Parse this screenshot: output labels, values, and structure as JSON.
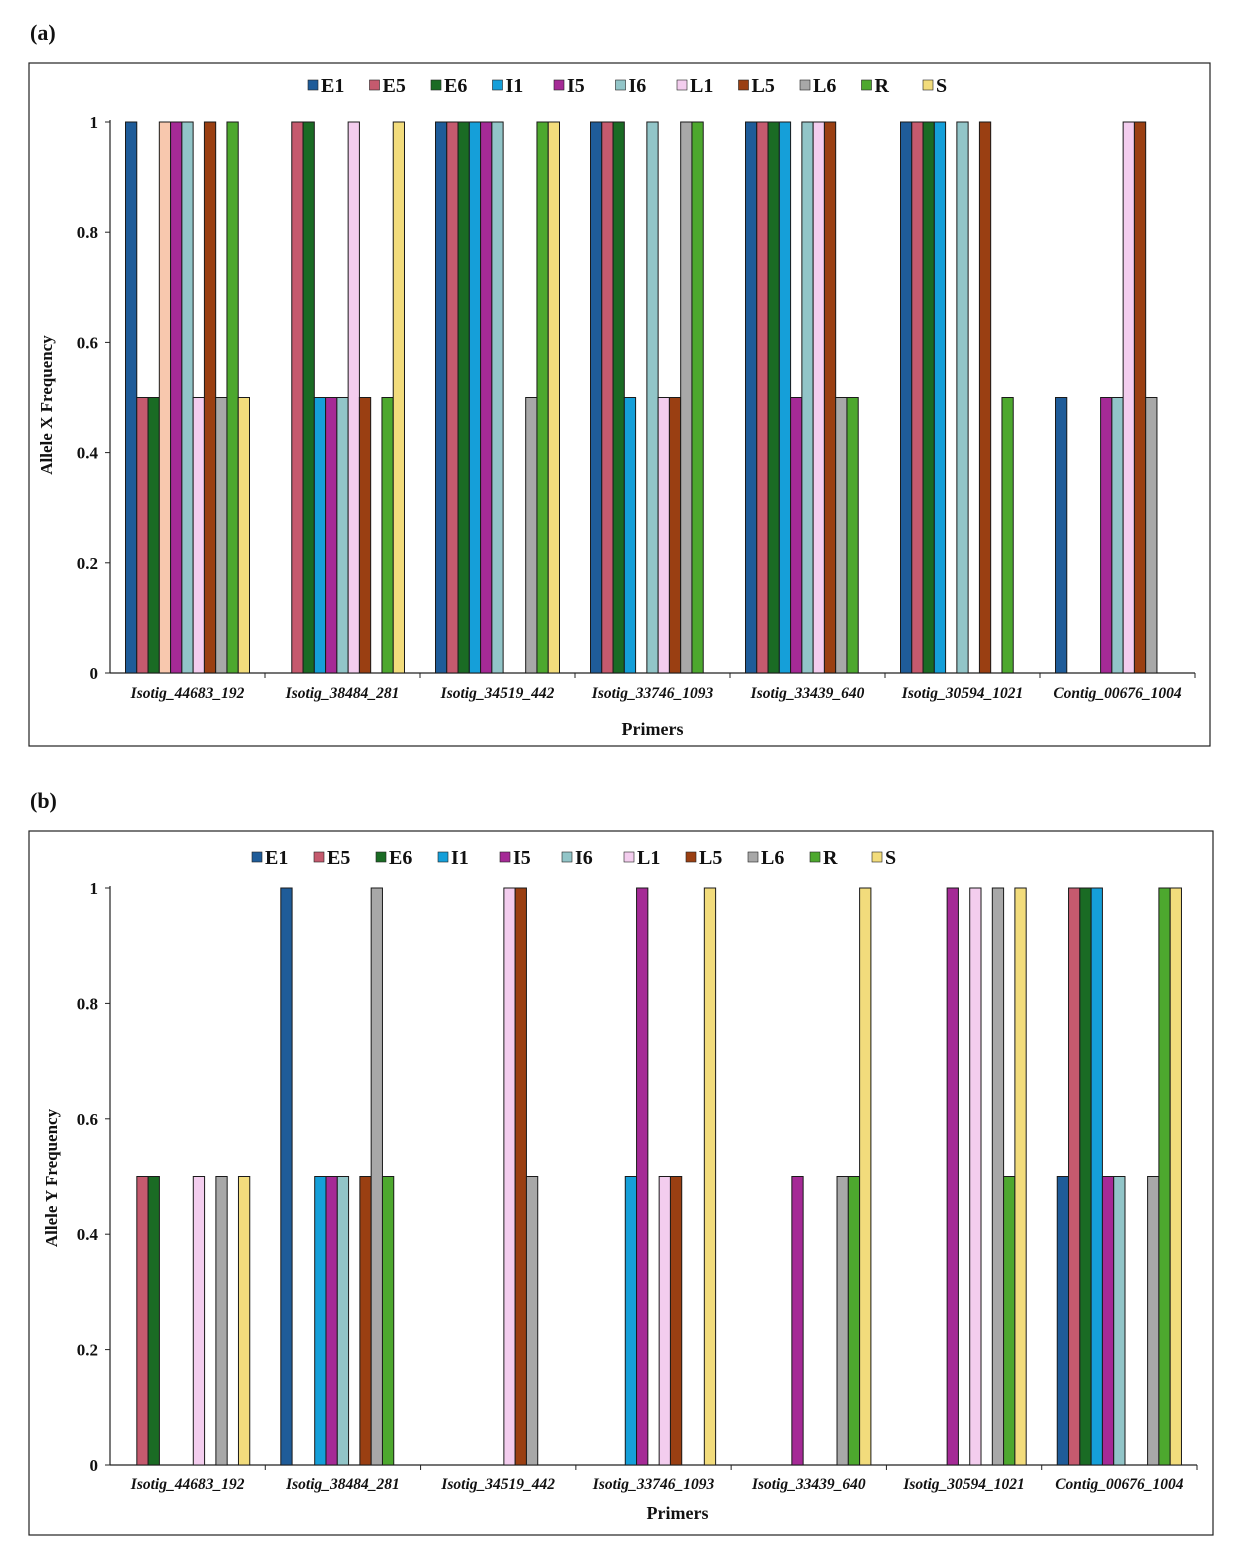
{
  "series_colors": {
    "E1": "#1F5C99",
    "E5": "#C55A6E",
    "E6": "#1A6B24",
    "I1": "#159FD9",
    "I5": "#A52A96",
    "I6": "#92C5C8",
    "L1": "#F3CDEE",
    "L5": "#9A3F12",
    "L6": "#A8A8A8",
    "R": "#4DA82E",
    "S": "#F2DC7C"
  },
  "chart_data": [
    {
      "panel_label": "(a)",
      "type": "bar",
      "xlabel": "Primers",
      "ylabel": "Allele X Frequency",
      "ylim": [
        0,
        1
      ],
      "yticks": [
        "0",
        "0.2",
        "0.4",
        "0.6",
        "0.8",
        "1"
      ],
      "grid": false,
      "legend": "top",
      "categories": [
        "Isotig_44683_192",
        "Isotig_38484_281",
        "Isotig_34519_442",
        "Isotig_33746_1093",
        "Isotig_33439_640",
        "Isotig_30594_1021",
        "Contig_00676_1004"
      ],
      "series": [
        {
          "name": "E1",
          "values": [
            1,
            0,
            1,
            1,
            1,
            1,
            0.5
          ]
        },
        {
          "name": "E5",
          "values": [
            0.5,
            1,
            1,
            1,
            1,
            1,
            0
          ]
        },
        {
          "name": "E6",
          "values": [
            0.5,
            1,
            1,
            1,
            1,
            1,
            0
          ]
        },
        {
          "name": "I1",
          "values": [
            1,
            0.5,
            1,
            0.5,
            1,
            1,
            0
          ]
        },
        {
          "name": "I5",
          "values": [
            1,
            0.5,
            1,
            0,
            0.5,
            0,
            0.5
          ]
        },
        {
          "name": "I6",
          "values": [
            1,
            0.5,
            1,
            1,
            1,
            1,
            0.5
          ]
        },
        {
          "name": "L1",
          "values": [
            0.5,
            1,
            0,
            0.5,
            1,
            0,
            1
          ]
        },
        {
          "name": "L5",
          "values": [
            1,
            0.5,
            0,
            0.5,
            1,
            1,
            1
          ]
        },
        {
          "name": "L6",
          "values": [
            0.5,
            0,
            0.5,
            1,
            0.5,
            0,
            0.5
          ]
        },
        {
          "name": "R",
          "values": [
            1,
            0.5,
            1,
            1,
            0.5,
            0.5,
            0
          ]
        },
        {
          "name": "S",
          "values": [
            0.5,
            1,
            1,
            0,
            0,
            0,
            0
          ]
        }
      ],
      "color_overrides": [
        {
          "series": "I1",
          "category": "Isotig_44683_192",
          "color": "#F8C8AE"
        }
      ]
    },
    {
      "panel_label": "(b)",
      "type": "bar",
      "xlabel": "Primers",
      "ylabel": "Allele Y Frequency",
      "ylim": [
        0,
        1
      ],
      "yticks": [
        "0",
        "0.2",
        "0.4",
        "0.6",
        "0.8",
        "1"
      ],
      "grid": false,
      "legend": "top",
      "categories": [
        "Isotig_44683_192",
        "Isotig_38484_281",
        "Isotig_34519_442",
        "Isotig_33746_1093",
        "Isotig_33439_640",
        "Isotig_30594_1021",
        "Contig_00676_1004"
      ],
      "series": [
        {
          "name": "E1",
          "values": [
            0,
            1,
            0,
            0,
            0,
            0,
            0.5
          ]
        },
        {
          "name": "E5",
          "values": [
            0.5,
            0,
            0,
            0,
            0,
            0,
            1
          ]
        },
        {
          "name": "E6",
          "values": [
            0.5,
            0,
            0,
            0,
            0,
            0,
            1
          ]
        },
        {
          "name": "I1",
          "values": [
            0,
            0.5,
            0,
            0.5,
            0,
            0,
            1
          ]
        },
        {
          "name": "I5",
          "values": [
            0,
            0.5,
            0,
            1,
            0.5,
            1,
            0.5
          ]
        },
        {
          "name": "I6",
          "values": [
            0,
            0.5,
            0,
            0,
            0,
            0,
            0.5
          ]
        },
        {
          "name": "L1",
          "values": [
            0.5,
            0,
            1,
            0.5,
            0,
            1,
            0
          ]
        },
        {
          "name": "L5",
          "values": [
            0,
            0.5,
            1,
            0.5,
            0,
            0,
            0
          ]
        },
        {
          "name": "L6",
          "values": [
            0.5,
            1,
            0.5,
            0,
            0.5,
            1,
            0.5
          ]
        },
        {
          "name": "R",
          "values": [
            0,
            0.5,
            0,
            0,
            0.5,
            0.5,
            1
          ]
        },
        {
          "name": "S",
          "values": [
            0.5,
            0,
            0,
            1,
            1,
            1,
            1
          ]
        }
      ]
    }
  ]
}
